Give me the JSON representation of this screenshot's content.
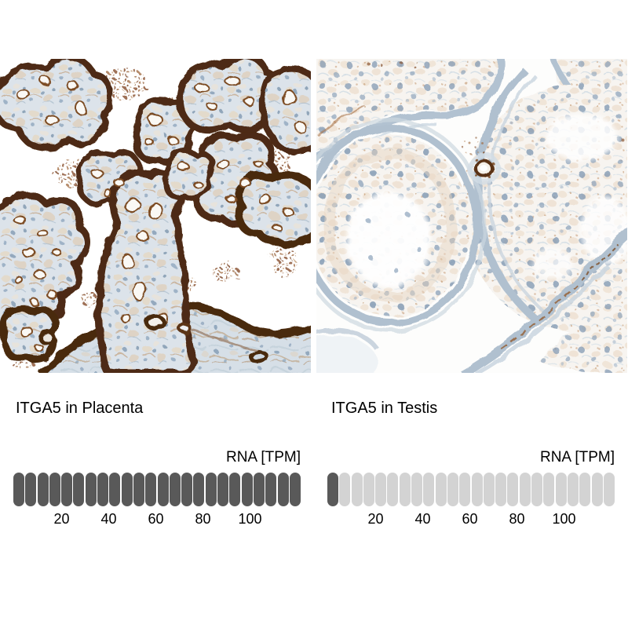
{
  "figure": {
    "background": "#ffffff",
    "text_color": "#000000",
    "pill_colors": {
      "filled": "#595959",
      "empty": "#d3d3d3"
    },
    "panels": [
      {
        "id": "placenta",
        "title": "ITGA5 in Placenta",
        "image_description": "IHC micrograph of placenta: chorionic villi rimmed by strong dark-brown membranous ITGA5 staining, pale blue-gray stroma with blue nuclei, brown granular debris on white background",
        "gauge": {
          "label": "RNA [TPM]",
          "ticks": [
            "20",
            "40",
            "60",
            "80",
            "100"
          ],
          "pills_total": 24,
          "pills_filled": 24,
          "tpm_per_pill": 5
        }
      },
      {
        "id": "testis",
        "title": "ITGA5 in Testis",
        "image_description": "IHC micrograph of testis: seminiferous tubules with faint blue-gray walls, scattered blue nuclei, pale tan cytoplasm, one small brown-rimmed vessel, white background",
        "gauge": {
          "label": "RNA [TPM]",
          "ticks": [
            "20",
            "40",
            "60",
            "80",
            "100"
          ],
          "pills_total": 24,
          "pills_filled": 1,
          "tpm_per_pill": 5
        }
      }
    ]
  },
  "chart_data": [
    {
      "type": "bar",
      "subtype": "unit-gauge",
      "title": "ITGA5 in Placenta",
      "label": "RNA [TPM]",
      "tick_labels": [
        20,
        40,
        60,
        80,
        100
      ],
      "axis_range": [
        0,
        120
      ],
      "tpm_per_pill": 5,
      "pills_total": 24,
      "pills_filled": 24,
      "filled_color": "#595959",
      "empty_color": "#d3d3d3",
      "legend_position": "none",
      "grid": false
    },
    {
      "type": "bar",
      "subtype": "unit-gauge",
      "title": "ITGA5 in Testis",
      "label": "RNA [TPM]",
      "tick_labels": [
        20,
        40,
        60,
        80,
        100
      ],
      "axis_range": [
        0,
        120
      ],
      "tpm_per_pill": 5,
      "pills_total": 24,
      "pills_filled": 1,
      "filled_color": "#595959",
      "empty_color": "#d3d3d3",
      "legend_position": "none",
      "grid": false
    }
  ]
}
